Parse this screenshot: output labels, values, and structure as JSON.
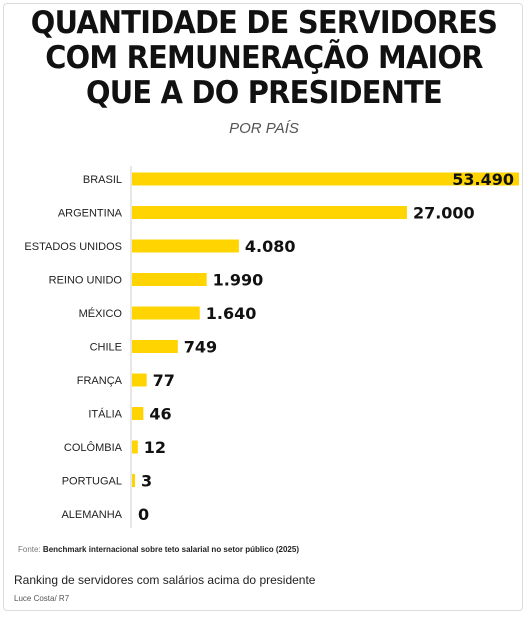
{
  "title_lines": [
    "QUANTIDADE DE SERVIDORES",
    "COM REMUNERAÇÃO MAIOR",
    "QUE A DO PRESIDENTE"
  ],
  "subtitle": "POR PAÍS",
  "source_prefix": "Fonte:",
  "source_text": "Benchmark internacional sobre teto salarial no setor público (2025)",
  "caption": "Ranking de servidores com salários acima do presidente",
  "credit": "Luce Costa/ R7",
  "colors": {
    "bar": "#FFD400",
    "text": "#111111"
  },
  "chart_data": {
    "type": "bar",
    "orientation": "horizontal",
    "title": "QUANTIDADE DE SERVIDORES COM REMUNERAÇÃO MAIOR QUE A DO PRESIDENTE",
    "subtitle": "POR PAÍS",
    "categories": [
      "BRASIL",
      "ARGENTINA",
      "ESTADOS UNIDOS",
      "REINO UNIDO",
      "MÉXICO",
      "CHILE",
      "FRANÇA",
      "ITÁLIA",
      "COLÔMBIA",
      "PORTUGAL",
      "ALEMANHA"
    ],
    "values": [
      53490,
      27000,
      4080,
      1990,
      1640,
      749,
      77,
      46,
      12,
      3,
      0
    ],
    "value_labels": [
      "53.490",
      "27.000",
      "4.080",
      "1.990",
      "1.640",
      "749",
      "77",
      "46",
      "12",
      "3",
      "0"
    ],
    "scale": "nonlinear (square-root-like bar lengths)",
    "grid": false,
    "legend": "none"
  }
}
